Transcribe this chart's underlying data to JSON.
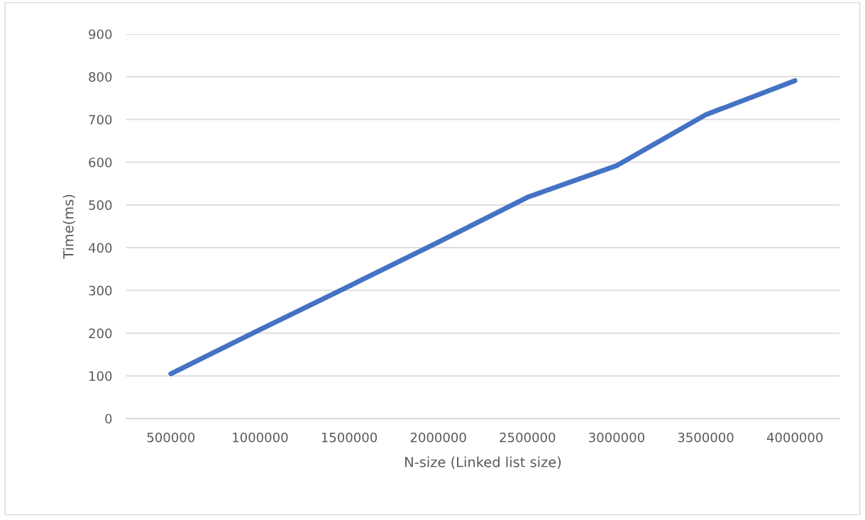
{
  "chart_data": {
    "type": "line",
    "categories": [
      "500000",
      "1000000",
      "1500000",
      "2000000",
      "2500000",
      "3000000",
      "3500000",
      "4000000"
    ],
    "series": [
      {
        "color": "#4472c4",
        "values": [
          105,
          208,
          310,
          413,
          518,
          592,
          711,
          791
        ]
      }
    ],
    "xlabel": "N-size (Linked list size)",
    "ylabel": "Time(ms)",
    "ylim": [
      0,
      900
    ],
    "yticks": [
      0,
      100,
      200,
      300,
      400,
      500,
      600,
      700,
      800,
      900
    ],
    "grid": "y",
    "marker": "none",
    "line_style": "solid"
  }
}
